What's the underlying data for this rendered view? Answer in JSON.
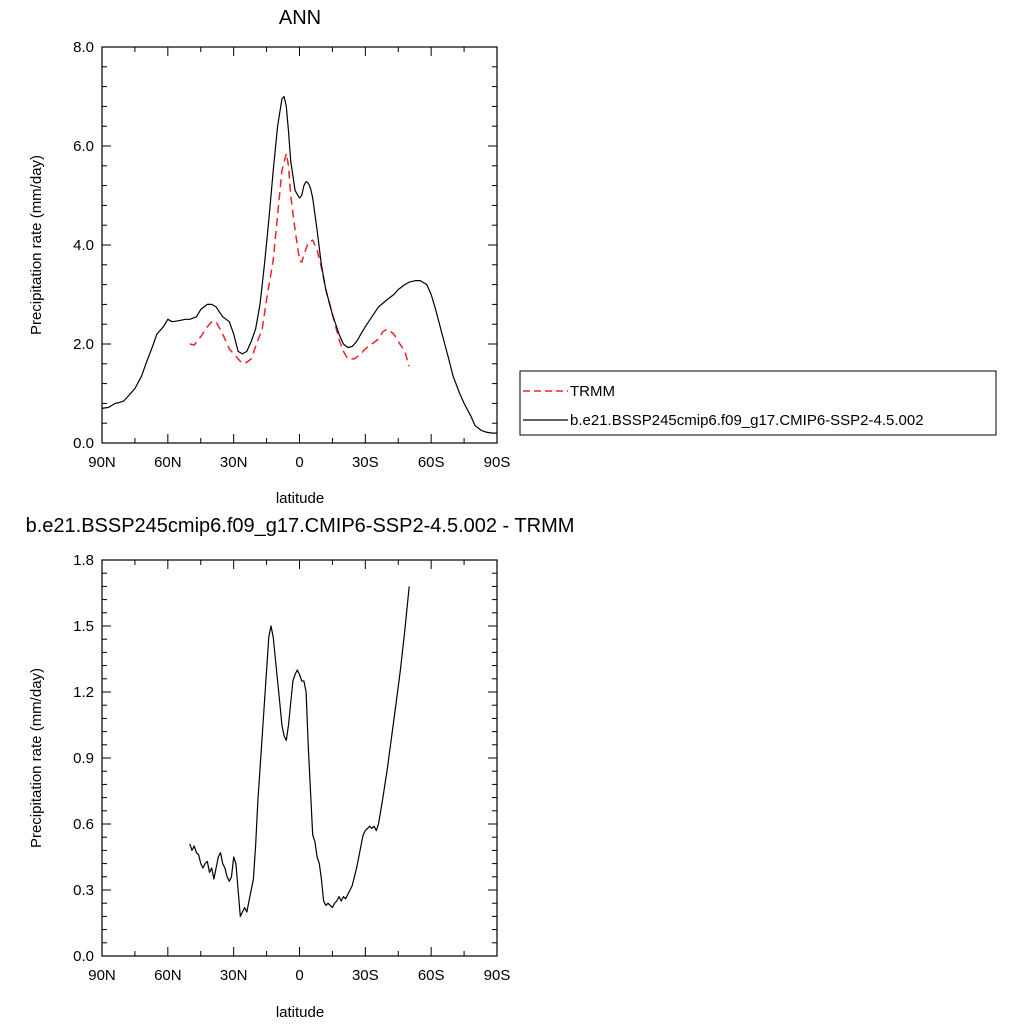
{
  "chart_data": [
    {
      "type": "line",
      "title": "ANN",
      "xlabel": "latitude",
      "ylabel": "Precipitation rate (mm/day)",
      "xlim": [
        90,
        -90
      ],
      "ylim": [
        0,
        8
      ],
      "x_ticks": [
        90,
        60,
        30,
        0,
        -30,
        -60,
        -90
      ],
      "x_tick_labels": [
        "90N",
        "60N",
        "30N",
        "0",
        "30S",
        "60S",
        "90S"
      ],
      "y_ticks": [
        0,
        2,
        4,
        6,
        8
      ],
      "y_tick_labels": [
        "0.0",
        "2.0",
        "4.0",
        "6.0",
        "8.0"
      ],
      "grid": false,
      "legend_position": "right",
      "series": [
        {
          "name": "TRMM",
          "color": "#e8262c",
          "style": "dashed",
          "x": [
            50,
            48,
            45,
            42,
            40,
            38,
            35,
            32,
            30,
            27,
            25,
            22,
            20,
            17,
            15,
            12,
            10,
            8,
            6,
            5,
            4,
            2,
            0,
            -1,
            -2,
            -4,
            -6,
            -8,
            -10,
            -12,
            -15,
            -18,
            -20,
            -22,
            -25,
            -28,
            -30,
            -33,
            -36,
            -38,
            -40,
            -43,
            -45,
            -48,
            -50
          ],
          "values": [
            2.0,
            1.98,
            2.15,
            2.35,
            2.45,
            2.45,
            2.2,
            1.9,
            1.8,
            1.65,
            1.6,
            1.7,
            1.95,
            2.3,
            2.9,
            3.7,
            4.6,
            5.5,
            5.85,
            5.6,
            5.0,
            4.3,
            3.7,
            3.65,
            3.8,
            4.05,
            4.1,
            3.9,
            3.55,
            3.1,
            2.6,
            2.1,
            1.85,
            1.7,
            1.7,
            1.8,
            1.9,
            2.0,
            2.1,
            2.25,
            2.3,
            2.2,
            2.05,
            1.85,
            1.55
          ]
        },
        {
          "name": "b.e21.BSSP245cmip6.f09_g17.CMIP6-SSP2-4.5.002",
          "color": "#000000",
          "style": "solid",
          "x": [
            90,
            87,
            84,
            82,
            80,
            78,
            75,
            72,
            70,
            67,
            65,
            62,
            60,
            58,
            55,
            52,
            50,
            47,
            45,
            42,
            40,
            38,
            35,
            32,
            30,
            28,
            26,
            24,
            22,
            20,
            18,
            16,
            14,
            12,
            10,
            8,
            7,
            6,
            5,
            4,
            2,
            0,
            -1,
            -2,
            -3,
            -4,
            -5,
            -6,
            -8,
            -10,
            -12,
            -15,
            -18,
            -20,
            -22,
            -24,
            -26,
            -28,
            -30,
            -33,
            -36,
            -40,
            -43,
            -45,
            -48,
            -50,
            -53,
            -55,
            -58,
            -60,
            -62,
            -65,
            -68,
            -70,
            -73,
            -75,
            -78,
            -80,
            -83,
            -85,
            -88,
            -90
          ],
          "values": [
            0.7,
            0.72,
            0.8,
            0.82,
            0.85,
            0.95,
            1.1,
            1.35,
            1.6,
            1.95,
            2.2,
            2.35,
            2.5,
            2.45,
            2.47,
            2.5,
            2.5,
            2.55,
            2.7,
            2.8,
            2.8,
            2.75,
            2.55,
            2.45,
            2.2,
            1.85,
            1.8,
            1.85,
            2.05,
            2.3,
            2.8,
            3.6,
            4.5,
            5.5,
            6.4,
            6.95,
            7.0,
            6.8,
            6.3,
            5.7,
            5.1,
            4.95,
            5.0,
            5.2,
            5.28,
            5.25,
            5.15,
            4.95,
            4.3,
            3.6,
            3.1,
            2.6,
            2.2,
            2.0,
            1.93,
            1.95,
            2.05,
            2.2,
            2.35,
            2.55,
            2.75,
            2.9,
            3.0,
            3.1,
            3.2,
            3.25,
            3.28,
            3.28,
            3.2,
            3.0,
            2.7,
            2.2,
            1.7,
            1.35,
            1.0,
            0.8,
            0.55,
            0.35,
            0.25,
            0.22,
            0.2,
            0.2
          ]
        }
      ]
    },
    {
      "type": "line",
      "title": "b.e21.BSSP245cmip6.f09_g17.CMIP6-SSP2-4.5.002 - TRMM",
      "xlabel": "latitude",
      "ylabel": "Precipitation rate (mm/day)",
      "xlim": [
        90,
        -90
      ],
      "ylim": [
        0,
        1.8
      ],
      "x_ticks": [
        90,
        60,
        30,
        0,
        -30,
        -60,
        -90
      ],
      "x_tick_labels": [
        "90N",
        "60N",
        "30N",
        "0",
        "30S",
        "60S",
        "90S"
      ],
      "y_ticks": [
        0,
        0.3,
        0.6,
        0.9,
        1.2,
        1.5,
        1.8
      ],
      "y_tick_labels": [
        "0.0",
        "0.3",
        "0.6",
        "0.9",
        "1.2",
        "1.5",
        "1.8"
      ],
      "grid": false,
      "series": [
        {
          "color": "#000000",
          "style": "solid",
          "x": [
            50,
            49,
            48,
            47,
            46,
            45,
            44,
            43,
            42,
            41,
            40,
            39,
            38,
            37,
            36,
            35,
            34,
            33,
            32,
            31,
            30,
            29,
            28,
            27,
            26,
            25,
            24,
            23,
            22,
            21,
            20,
            19,
            18,
            17,
            16,
            15,
            14,
            13,
            12,
            11,
            10,
            9,
            8,
            7,
            6,
            5,
            4,
            3,
            2,
            1,
            0,
            -1,
            -2,
            -3,
            -4,
            -5,
            -6,
            -7,
            -8,
            -9,
            -10,
            -11,
            -12,
            -13,
            -14,
            -15,
            -16,
            -17,
            -18,
            -19,
            -20,
            -21,
            -22,
            -23,
            -24,
            -25,
            -26,
            -27,
            -28,
            -29,
            -30,
            -31,
            -32,
            -33,
            -34,
            -35,
            -36,
            -38,
            -40,
            -42,
            -44,
            -46,
            -48,
            -50
          ],
          "values": [
            0.51,
            0.48,
            0.5,
            0.47,
            0.46,
            0.42,
            0.4,
            0.42,
            0.43,
            0.38,
            0.4,
            0.35,
            0.4,
            0.45,
            0.47,
            0.42,
            0.4,
            0.36,
            0.34,
            0.36,
            0.45,
            0.42,
            0.3,
            0.18,
            0.2,
            0.22,
            0.2,
            0.25,
            0.3,
            0.35,
            0.5,
            0.7,
            0.85,
            1.0,
            1.15,
            1.3,
            1.45,
            1.5,
            1.45,
            1.35,
            1.25,
            1.15,
            1.05,
            1.0,
            0.98,
            1.05,
            1.15,
            1.25,
            1.28,
            1.3,
            1.28,
            1.25,
            1.25,
            1.2,
            0.95,
            0.75,
            0.55,
            0.52,
            0.45,
            0.42,
            0.35,
            0.25,
            0.23,
            0.24,
            0.23,
            0.22,
            0.24,
            0.25,
            0.27,
            0.25,
            0.27,
            0.26,
            0.28,
            0.3,
            0.32,
            0.36,
            0.4,
            0.45,
            0.5,
            0.55,
            0.57,
            0.58,
            0.59,
            0.58,
            0.59,
            0.57,
            0.6,
            0.72,
            0.85,
            1.0,
            1.15,
            1.3,
            1.48,
            1.68
          ]
        }
      ]
    }
  ]
}
